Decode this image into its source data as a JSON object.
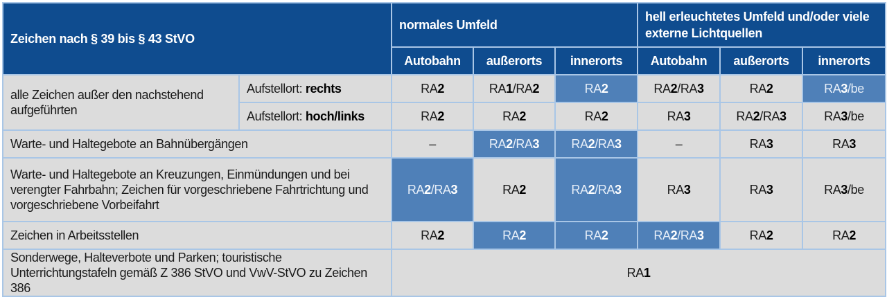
{
  "header": {
    "main": "Zeichen nach § 39 bis § 43 StVO",
    "group1": "normales Umfeld",
    "group2": "hell erleuchtetes Umfeld und/oder viele externe Lichtquellen",
    "cols": [
      "Autobahn",
      "außerorts",
      "innerorts",
      "Autobahn",
      "außerorts",
      "innerorts"
    ]
  },
  "colors": {
    "header": "#0f4c8f",
    "highlight": "#4f80b8",
    "cell": "#dcdcdc",
    "border": "#a9c6e6"
  },
  "rows": [
    {
      "label": "alle Zeichen außer den nachstehend aufgeführten",
      "sub_prefix": "Aufstellort: ",
      "sub_bold": "rechts",
      "cells": [
        "RA2",
        "RA1/RA2",
        "RA2",
        "RA2/RA3",
        "RA2",
        "RA3/be"
      ],
      "highlight": [
        false,
        false,
        true,
        false,
        false,
        true
      ]
    },
    {
      "sub_prefix": "Aufstellort: ",
      "sub_bold": "hoch/links",
      "cells": [
        "RA2",
        "RA2",
        "RA2",
        "RA3",
        "RA2/RA3",
        "RA3/be"
      ],
      "highlight": [
        false,
        false,
        false,
        false,
        false,
        false
      ]
    },
    {
      "label": "Warte- und Haltegebote an Bahnübergängen",
      "cells": [
        "–",
        "RA2/RA3",
        "RA2/RA3",
        "–",
        "RA3",
        "RA3"
      ],
      "highlight": [
        false,
        true,
        true,
        false,
        false,
        false
      ]
    },
    {
      "label": "Warte- und Haltegebote an Kreuzungen, Einmündungen und bei verengter Fahrbahn; Zeichen für vorgeschriebene Fahrtrichtung und vorgeschriebene Vorbeifahrt",
      "cells": [
        "RA2/RA3",
        "RA2",
        "RA2/RA3",
        "RA3",
        "RA3",
        "RA3/be"
      ],
      "highlight": [
        true,
        false,
        true,
        false,
        false,
        false
      ]
    },
    {
      "label": "Zeichen in Arbeitsstellen",
      "cells": [
        "RA2",
        "RA2",
        "RA2",
        "RA2/RA3",
        "RA2",
        "RA2"
      ],
      "highlight": [
        false,
        true,
        true,
        true,
        false,
        false
      ]
    },
    {
      "label": "Sonderwege, Halteverbote und Parken; touristische Unterrichtungstafeln gemäß Z 386 StVO und VwV-StVO zu Zeichen 386",
      "cells": [
        "RA1"
      ]
    }
  ]
}
